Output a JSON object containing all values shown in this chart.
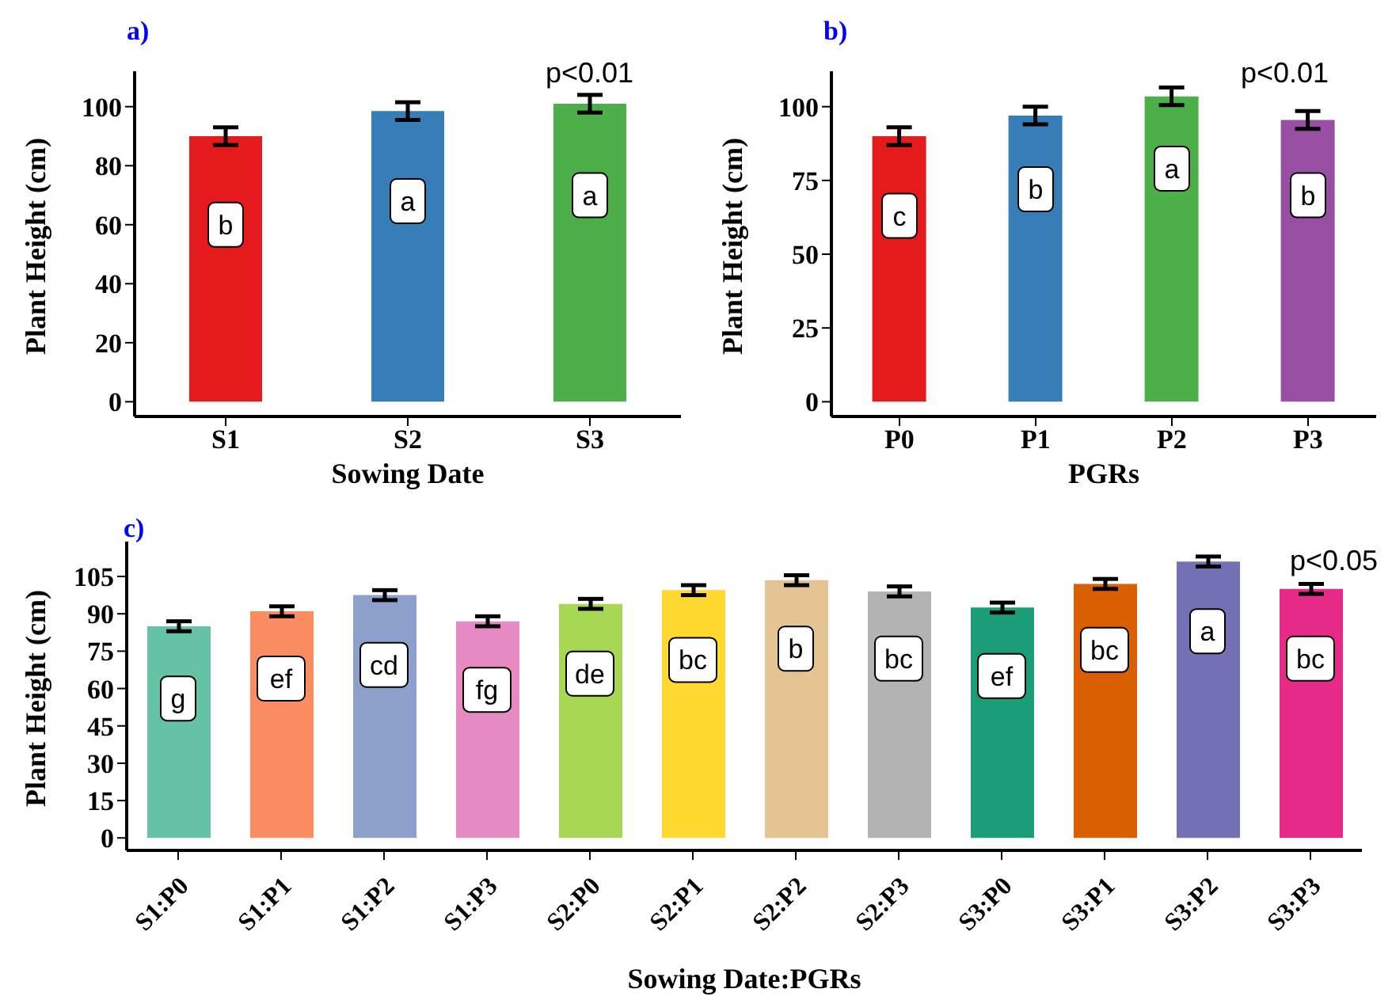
{
  "chart_data": [
    {
      "type": "bar",
      "title": "a)",
      "xlabel": "Sowing Date",
      "ylabel": "Plant Height (cm)",
      "categories": [
        "S1",
        "S2",
        "S3"
      ],
      "values": [
        90,
        98.5,
        101
      ],
      "colors": [
        "#e41a1c",
        "#377eb8",
        "#4daf4a"
      ],
      "errors": [
        3,
        3,
        3
      ],
      "ylim": [
        -5,
        112
      ],
      "yticks": [
        0,
        20,
        40,
        60,
        80,
        100
      ],
      "grid": false,
      "annotations": [
        {
          "text": "b",
          "x": "S1",
          "y": 60
        },
        {
          "text": "a",
          "x": "S2",
          "y": 68
        },
        {
          "text": "a",
          "x": "S3",
          "y": 70
        },
        "p<0.01"
      ]
    },
    {
      "type": "bar",
      "title": "b)",
      "xlabel": "PGRs",
      "ylabel": "Plant Height (cm)",
      "categories": [
        "P0",
        "P1",
        "P2",
        "P3"
      ],
      "values": [
        90,
        97,
        103.5,
        95.5
      ],
      "colors": [
        "#e41a1c",
        "#377eb8",
        "#4daf4a",
        "#984ea3"
      ],
      "errors": [
        3,
        3,
        3,
        3
      ],
      "ylim": [
        -5,
        112
      ],
      "yticks": [
        0,
        25,
        50,
        75,
        100
      ],
      "grid": false,
      "annotations": [
        {
          "text": "c",
          "x": "P0",
          "y": 63
        },
        {
          "text": "b",
          "x": "P1",
          "y": 72
        },
        {
          "text": "a",
          "x": "P2",
          "y": 79
        },
        {
          "text": "b",
          "x": "P3",
          "y": 70
        },
        "p<0.01"
      ]
    },
    {
      "type": "bar",
      "title": "c)",
      "xlabel": "Sowing Date:PGRs",
      "ylabel": "Plant Height (cm)",
      "categories": [
        "S1:P0",
        "S1:P1",
        "S1:P2",
        "S1:P3",
        "S2:P0",
        "S2:P1",
        "S2:P2",
        "S2:P3",
        "S3:P0",
        "S3:P1",
        "S3:P2",
        "S3:P3"
      ],
      "values": [
        85,
        91,
        97.5,
        87,
        94,
        99.5,
        103.5,
        99,
        92.5,
        102,
        111,
        100
      ],
      "colors": [
        "#66c2a5",
        "#fc8d62",
        "#8da0cb",
        "#e78ac3",
        "#a6d854",
        "#ffd92f",
        "#e5c494",
        "#b3b3b3",
        "#1b9e77",
        "#d95f02",
        "#7570b3",
        "#e7298a"
      ],
      "errors": [
        2,
        2,
        2,
        2,
        2,
        2,
        2,
        2,
        2,
        2,
        2,
        2
      ],
      "ylim": [
        -5,
        119
      ],
      "yticks": [
        0,
        15,
        30,
        45,
        60,
        75,
        90,
        105
      ],
      "grid": false,
      "annotations": [
        {
          "text": "g",
          "x": "S1:P0",
          "y": 56
        },
        {
          "text": "ef",
          "x": "S1:P1",
          "y": 64
        },
        {
          "text": "cd",
          "x": "S1:P2",
          "y": 69.5
        },
        {
          "text": "fg",
          "x": "S1:P3",
          "y": 59.5
        },
        {
          "text": "de",
          "x": "S2:P0",
          "y": 66
        },
        {
          "text": "bc",
          "x": "S2:P1",
          "y": 71.5
        },
        {
          "text": "b",
          "x": "S2:P2",
          "y": 76
        },
        {
          "text": "bc",
          "x": "S2:P3",
          "y": 72
        },
        {
          "text": "ef",
          "x": "S3:P0",
          "y": 65
        },
        {
          "text": "bc",
          "x": "S3:P1",
          "y": 75.5
        },
        {
          "text": "a",
          "x": "S3:P2",
          "y": 83
        },
        {
          "text": "bc",
          "x": "S3:P3",
          "y": 72
        },
        "p<0.05"
      ]
    }
  ]
}
